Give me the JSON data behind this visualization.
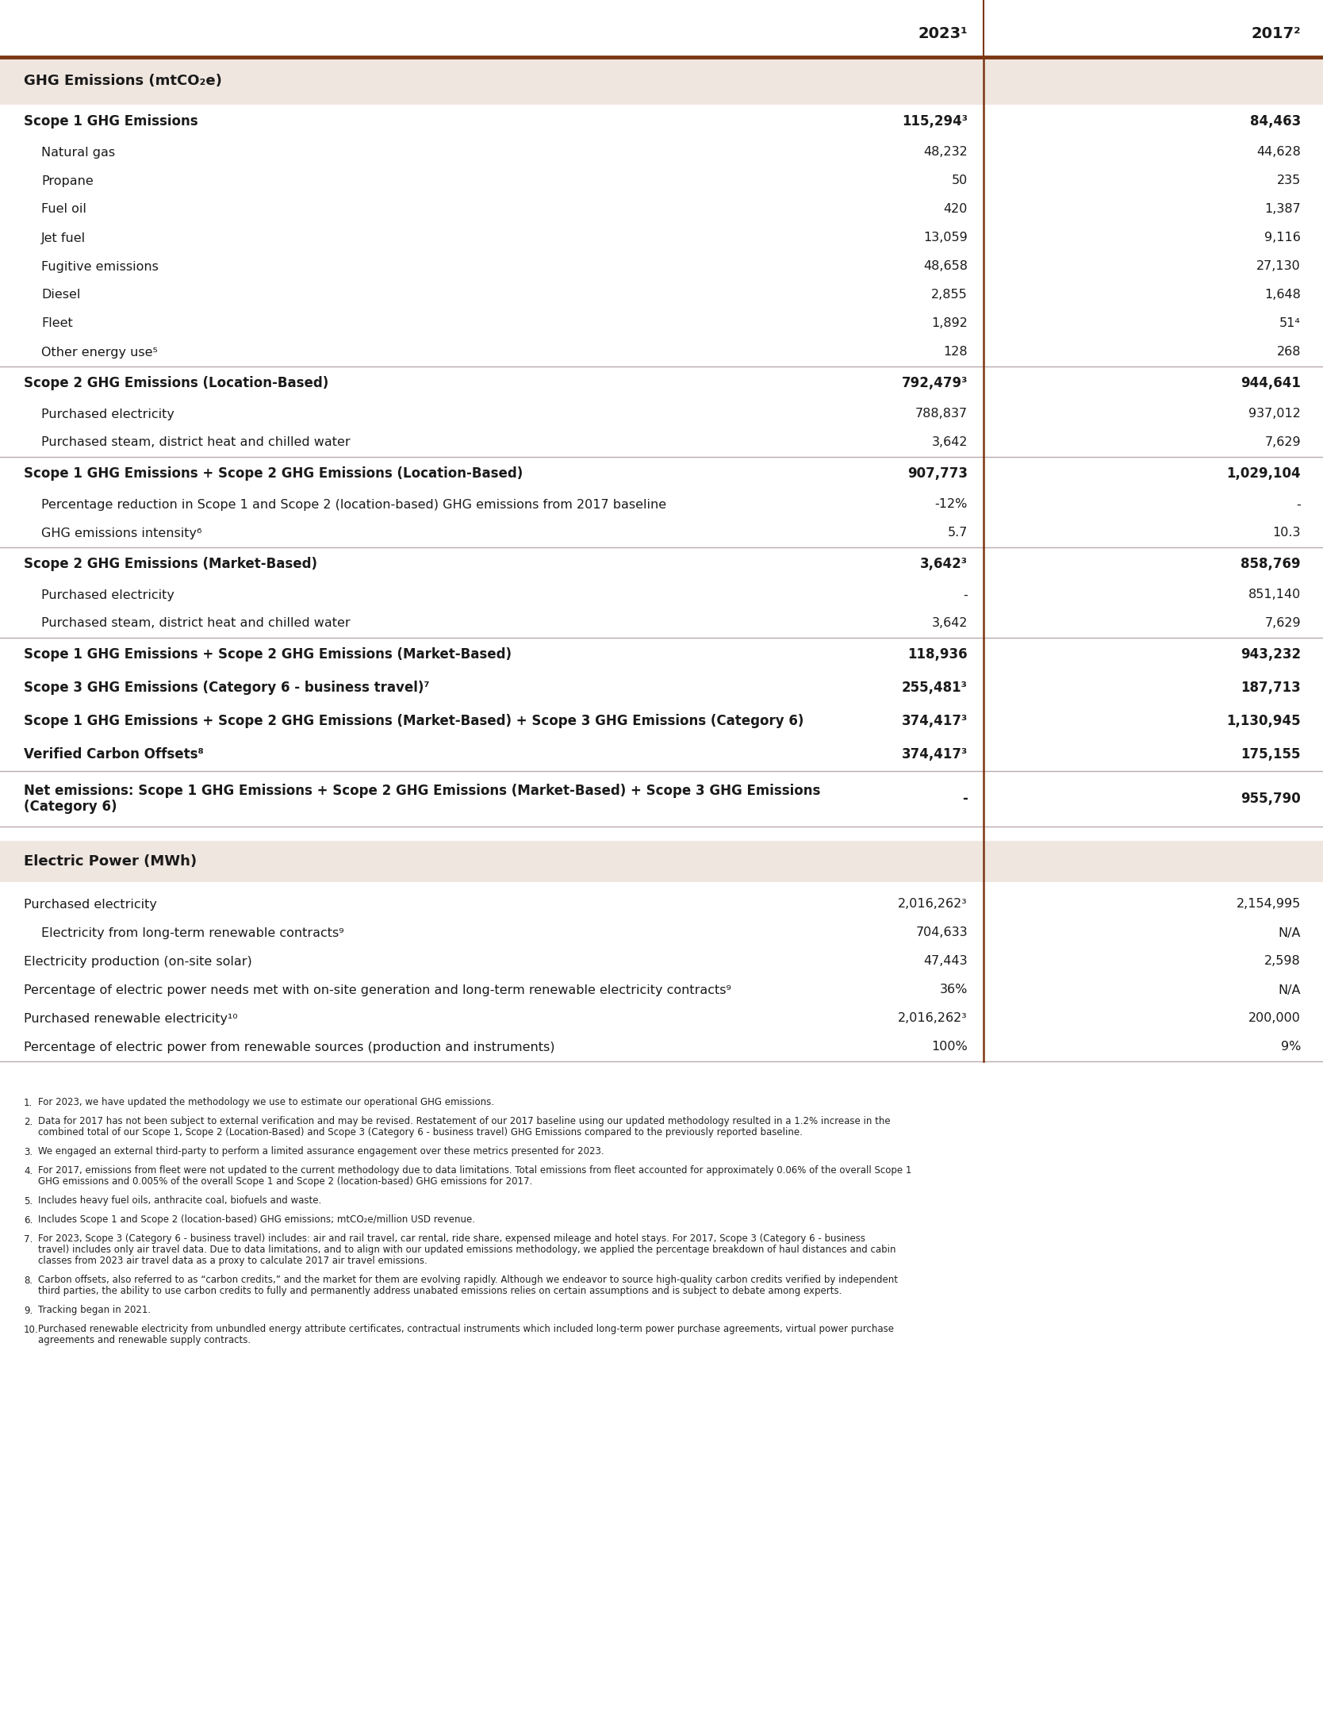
{
  "header_col2": "2023¹",
  "header_col3": "2017²",
  "ghg_section_header": "GHG Emissions (mtCO₂e)",
  "electric_section_header": "Electric Power (MWh)",
  "rows": [
    {
      "label": "Scope 1 GHG Emissions",
      "val2023": "115,294³",
      "val2017": "84,463",
      "bold": true,
      "indent": 0,
      "sep_above": false
    },
    {
      "label": "Natural gas",
      "val2023": "48,232",
      "val2017": "44,628",
      "bold": false,
      "indent": 1,
      "sep_above": false
    },
    {
      "label": "Propane",
      "val2023": "50",
      "val2017": "235",
      "bold": false,
      "indent": 1,
      "sep_above": false
    },
    {
      "label": "Fuel oil",
      "val2023": "420",
      "val2017": "1,387",
      "bold": false,
      "indent": 1,
      "sep_above": false
    },
    {
      "label": "Jet fuel",
      "val2023": "13,059",
      "val2017": "9,116",
      "bold": false,
      "indent": 1,
      "sep_above": false
    },
    {
      "label": "Fugitive emissions",
      "val2023": "48,658",
      "val2017": "27,130",
      "bold": false,
      "indent": 1,
      "sep_above": false
    },
    {
      "label": "Diesel",
      "val2023": "2,855",
      "val2017": "1,648",
      "bold": false,
      "indent": 1,
      "sep_above": false
    },
    {
      "label": "Fleet",
      "val2023": "1,892",
      "val2017": "51⁴",
      "bold": false,
      "indent": 1,
      "sep_above": false
    },
    {
      "label": "Other energy use⁵",
      "val2023": "128",
      "val2017": "268",
      "bold": false,
      "indent": 1,
      "sep_above": false
    },
    {
      "label": "Scope 2 GHG Emissions (Location-Based)",
      "val2023": "792,479³",
      "val2017": "944,641",
      "bold": true,
      "indent": 0,
      "sep_above": true
    },
    {
      "label": "Purchased electricity",
      "val2023": "788,837",
      "val2017": "937,012",
      "bold": false,
      "indent": 1,
      "sep_above": false
    },
    {
      "label": "Purchased steam, district heat and chilled water",
      "val2023": "3,642",
      "val2017": "7,629",
      "bold": false,
      "indent": 1,
      "sep_above": false
    },
    {
      "label": "Scope 1 GHG Emissions + Scope 2 GHG Emissions (Location-Based)",
      "val2023": "907,773",
      "val2017": "1,029,104",
      "bold": true,
      "indent": 0,
      "sep_above": true
    },
    {
      "label": "Percentage reduction in Scope 1 and Scope 2 (location-based) GHG emissions from 2017 baseline",
      "val2023": "-12%",
      "val2017": "-",
      "bold": false,
      "indent": 1,
      "sep_above": false
    },
    {
      "label": "GHG emissions intensity⁶",
      "val2023": "5.7",
      "val2017": "10.3",
      "bold": false,
      "indent": 1,
      "sep_above": false
    },
    {
      "label": "Scope 2 GHG Emissions (Market-Based)",
      "val2023": "3,642³",
      "val2017": "858,769",
      "bold": true,
      "indent": 0,
      "sep_above": true
    },
    {
      "label": "Purchased electricity",
      "val2023": "-",
      "val2017": "851,140",
      "bold": false,
      "indent": 1,
      "sep_above": false
    },
    {
      "label": "Purchased steam, district heat and chilled water",
      "val2023": "3,642",
      "val2017": "7,629",
      "bold": false,
      "indent": 1,
      "sep_above": false
    },
    {
      "label": "Scope 1 GHG Emissions + Scope 2 GHG Emissions (Market-Based)",
      "val2023": "118,936",
      "val2017": "943,232",
      "bold": true,
      "indent": 0,
      "sep_above": true
    },
    {
      "label": "Scope 3 GHG Emissions (Category 6 - business travel)⁷",
      "val2023": "255,481³",
      "val2017": "187,713",
      "bold": true,
      "indent": 0,
      "sep_above": false
    },
    {
      "label": "Scope 1 GHG Emissions + Scope 2 GHG Emissions (Market-Based) + Scope 3 GHG Emissions (Category 6)",
      "val2023": "374,417³",
      "val2017": "1,130,945",
      "bold": true,
      "indent": 0,
      "sep_above": false
    },
    {
      "label": "Verified Carbon Offsets⁸",
      "val2023": "374,417³",
      "val2017": "175,155",
      "bold": true,
      "indent": 0,
      "sep_above": false
    },
    {
      "label": "Net emissions: Scope 1 GHG Emissions + Scope 2 GHG Emissions (Market-Based) + Scope 3 GHG Emissions\n(Category 6)",
      "val2023": "-",
      "val2017": "955,790",
      "bold": true,
      "indent": 0,
      "sep_above": true
    }
  ],
  "electric_rows": [
    {
      "label": "Purchased electricity",
      "val2023": "2,016,262³",
      "val2017": "2,154,995",
      "bold": false,
      "indent": 0,
      "sep_above": false
    },
    {
      "label": "Electricity from long-term renewable contracts⁹",
      "val2023": "704,633",
      "val2017": "N/A",
      "bold": false,
      "indent": 1,
      "sep_above": false
    },
    {
      "label": "Electricity production (on-site solar)",
      "val2023": "47,443",
      "val2017": "2,598",
      "bold": false,
      "indent": 0,
      "sep_above": false
    },
    {
      "label": "Percentage of electric power needs met with on-site generation and long-term renewable electricity contracts⁹",
      "val2023": "36%",
      "val2017": "N/A",
      "bold": false,
      "indent": 0,
      "sep_above": false
    },
    {
      "label": "Purchased renewable electricity¹⁰",
      "val2023": "2,016,262³",
      "val2017": "200,000",
      "bold": false,
      "indent": 0,
      "sep_above": false
    },
    {
      "label": "Percentage of electric power from renewable sources (production and instruments)",
      "val2023": "100%",
      "val2017": "9%",
      "bold": false,
      "indent": 0,
      "sep_above": false
    }
  ],
  "footnotes": [
    {
      "num": "1.",
      "text": "For 2023, we have updated the methodology we use to estimate our operational GHG emissions."
    },
    {
      "num": "2.",
      "text": "Data for 2017 has not been subject to external verification and may be revised. Restatement of our 2017 baseline using our updated methodology resulted in a 1.2% increase in the combined total of our Scope 1, Scope 2 (Location-Based) and Scope 3 (Category 6 - business travel) GHG Emissions compared to the previously reported baseline."
    },
    {
      "num": "3.",
      "text": "We engaged an external third-party to perform a limited assurance engagement over these metrics presented for 2023."
    },
    {
      "num": "4.",
      "text": "For 2017, emissions from fleet were not updated to the current methodology due to data limitations. Total emissions from fleet accounted for approximately 0.06% of the overall Scope 1 GHG emissions and 0.005% of the overall Scope 1 and Scope 2 (location-based) GHG emissions for 2017."
    },
    {
      "num": "5.",
      "text": "Includes heavy fuel oils, anthracite coal, biofuels and waste."
    },
    {
      "num": "6.",
      "text": "Includes Scope 1 and Scope 2 (location-based) GHG emissions; mtCO₂e/million USD revenue."
    },
    {
      "num": "7.",
      "text": "For 2023, Scope 3 (Category 6 - business travel) includes: air and rail travel, car rental, ride share, expensed mileage and hotel stays. For 2017, Scope 3 (Category 6 - business travel) includes only air travel data. Due to data limitations, and to align with our updated emissions methodology, we applied the percentage breakdown of haul distances and cabin classes from 2023 air travel data as a proxy to calculate 2017 air travel emissions."
    },
    {
      "num": "8.",
      "text": "Carbon offsets, also referred to as “carbon credits,” and the market for them are evolving rapidly. Although we endeavor to source high-quality carbon credits verified by independent third parties, the ability to use carbon credits to fully and permanently address unabated emissions relies on certain assumptions and is subject to debate among experts."
    },
    {
      "num": "9.",
      "text": "Tracking began in 2021."
    },
    {
      "num": "10.",
      "text": "Purchased renewable electricity from unbundled energy attribute certificates, contractual instruments which included long-term power purchase agreements, virtual power purchase agreements and renewable supply contracts."
    }
  ],
  "brown": "#7B3612",
  "section_bg": "#F0E6E0",
  "text_color": "#1A1A1A",
  "gray_sep": "#BBAAAA",
  "footnote_color": "#222222"
}
